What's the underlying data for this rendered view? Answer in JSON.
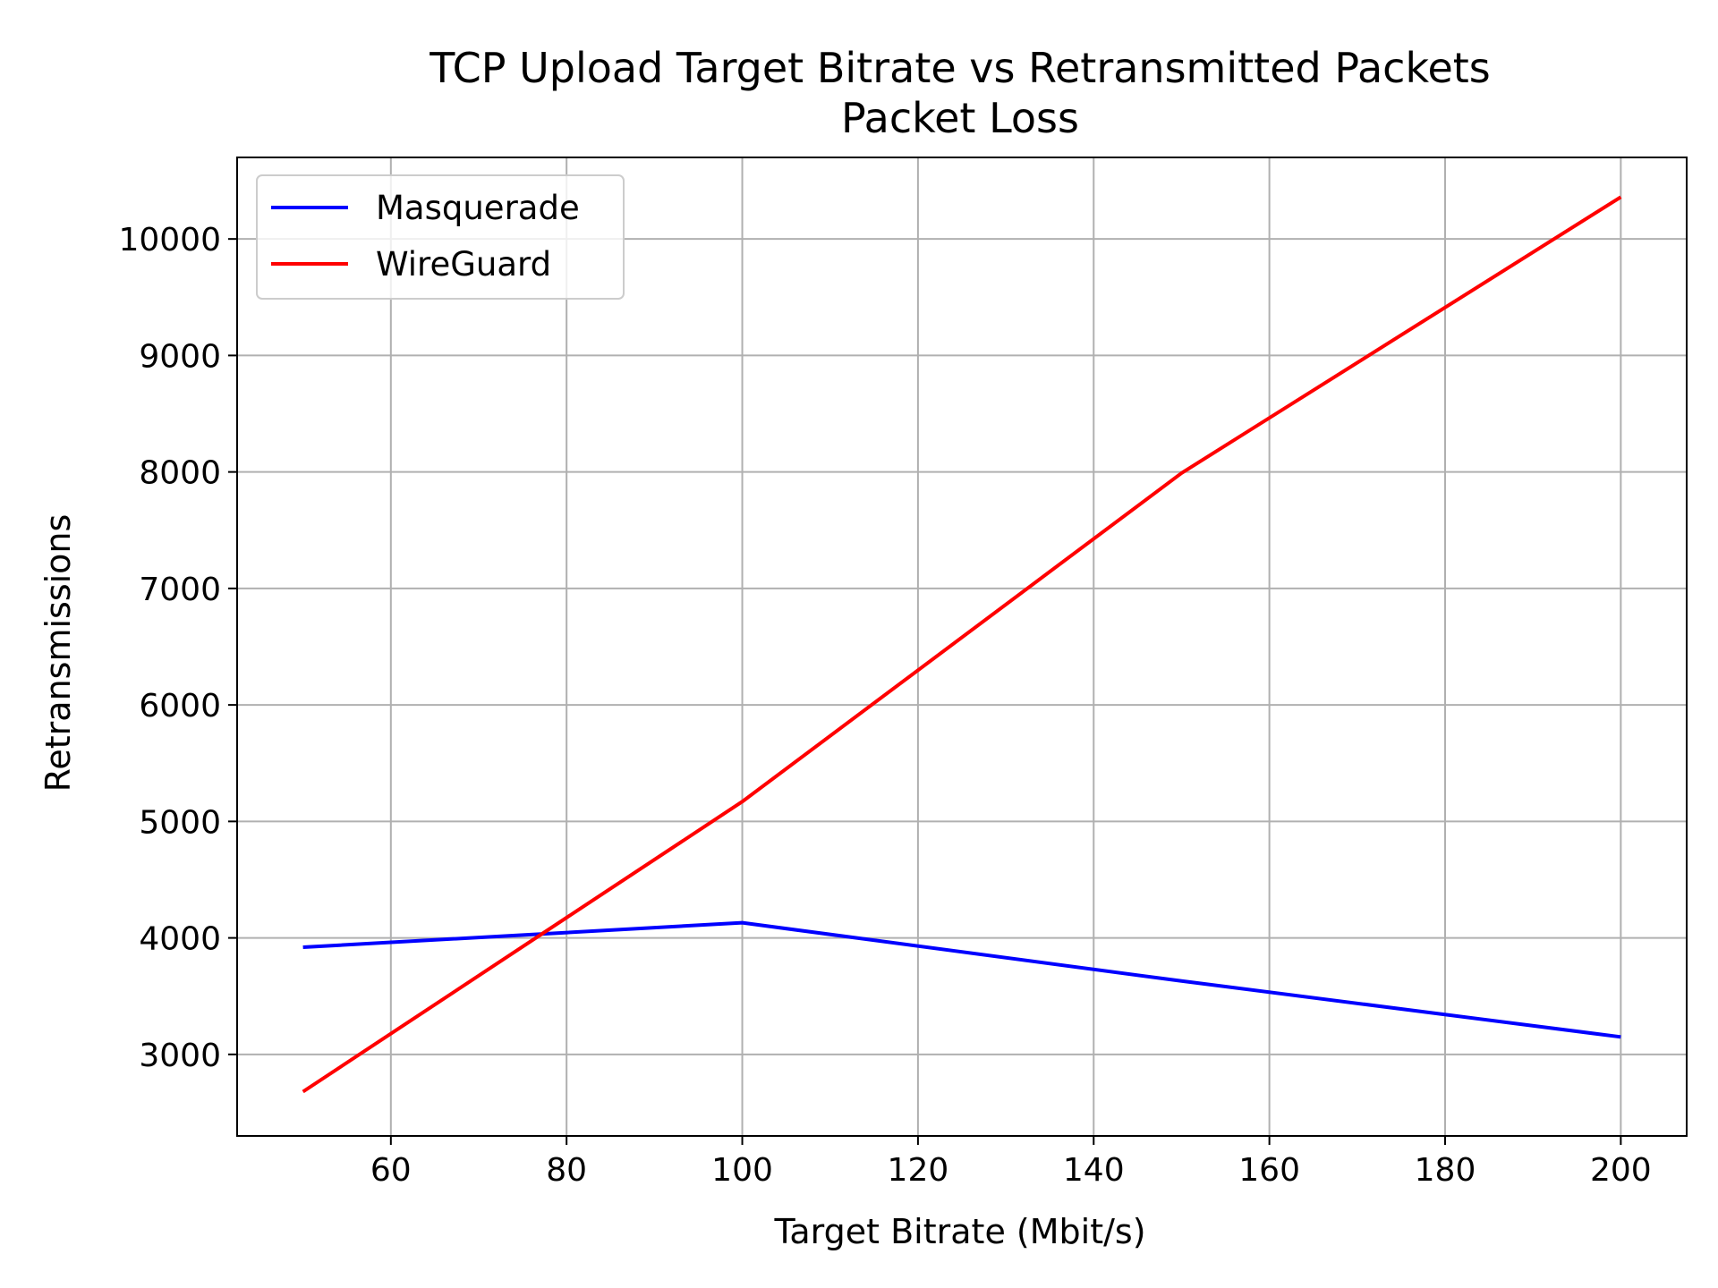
{
  "chart_data": {
    "type": "line",
    "title": "TCP Upload Target Bitrate vs Retransmitted Packets",
    "subtitle": "Packet Loss",
    "xlabel": "Target Bitrate (Mbit/s)",
    "ylabel": "Retransmissions",
    "xlim": [
      42.5,
      207.5
    ],
    "ylim": [
      2300,
      10700
    ],
    "xticks": [
      60,
      80,
      100,
      120,
      140,
      160,
      180,
      200
    ],
    "yticks": [
      3000,
      4000,
      5000,
      6000,
      7000,
      8000,
      9000,
      10000
    ],
    "grid": true,
    "legend_position": "top-left",
    "series": [
      {
        "name": "Masquerade",
        "color": "#0000ff",
        "x": [
          50,
          100,
          150,
          200
        ],
        "y": [
          3920,
          4130,
          3630,
          3150
        ]
      },
      {
        "name": "WireGuard",
        "color": "#ff0000",
        "x": [
          50,
          100,
          150,
          200
        ],
        "y": [
          2680,
          5170,
          7990,
          10360
        ]
      }
    ]
  }
}
